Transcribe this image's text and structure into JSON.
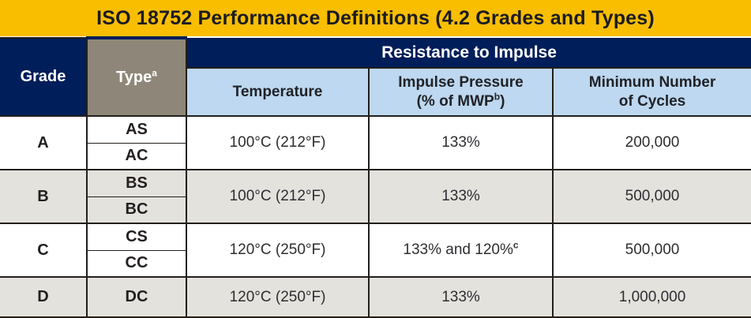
{
  "title": "ISO 18752 Performance Definitions (4.2 Grades and Types)",
  "colors": {
    "title_bar_gold": "#F9BE00",
    "header_navy": "#001E5A",
    "type_header_taupe": "#8E8779",
    "subheader_light_blue": "#BDD8F0",
    "row_alt_gray": "#E4E2DD",
    "row_white": "#FFFFFF",
    "border_dark": "#231F1C"
  },
  "table": {
    "group_header": "Resistance to Impulse",
    "headers": {
      "grade": "Grade",
      "type": "Type",
      "type_sup": "a",
      "temperature": "Temperature",
      "impulse_line1": "Impulse Pressure",
      "impulse_line2_prefix": "(% of MWP",
      "impulse_line2_sup": "b",
      "impulse_line2_suffix": ")",
      "cycles_line1": "Minimum Number",
      "cycles_line2": "of Cycles"
    },
    "rows": [
      {
        "grade": "A",
        "types": [
          "AS",
          "AC"
        ],
        "temperature": "100°C (212°F)",
        "impulse_text": "133%",
        "impulse_sup": "",
        "cycles": "200,000"
      },
      {
        "grade": "B",
        "types": [
          "BS",
          "BC"
        ],
        "temperature": "100°C (212°F)",
        "impulse_text": "133%",
        "impulse_sup": "",
        "cycles": "500,000"
      },
      {
        "grade": "C",
        "types": [
          "CS",
          "CC"
        ],
        "temperature": "120°C (250°F)",
        "impulse_text": "133% and 120%",
        "impulse_sup": "c",
        "cycles": "500,000"
      },
      {
        "grade": "D",
        "types": [
          "DC"
        ],
        "temperature": "120°C (250°F)",
        "impulse_text": "133%",
        "impulse_sup": "",
        "cycles": "1,000,000"
      }
    ]
  }
}
